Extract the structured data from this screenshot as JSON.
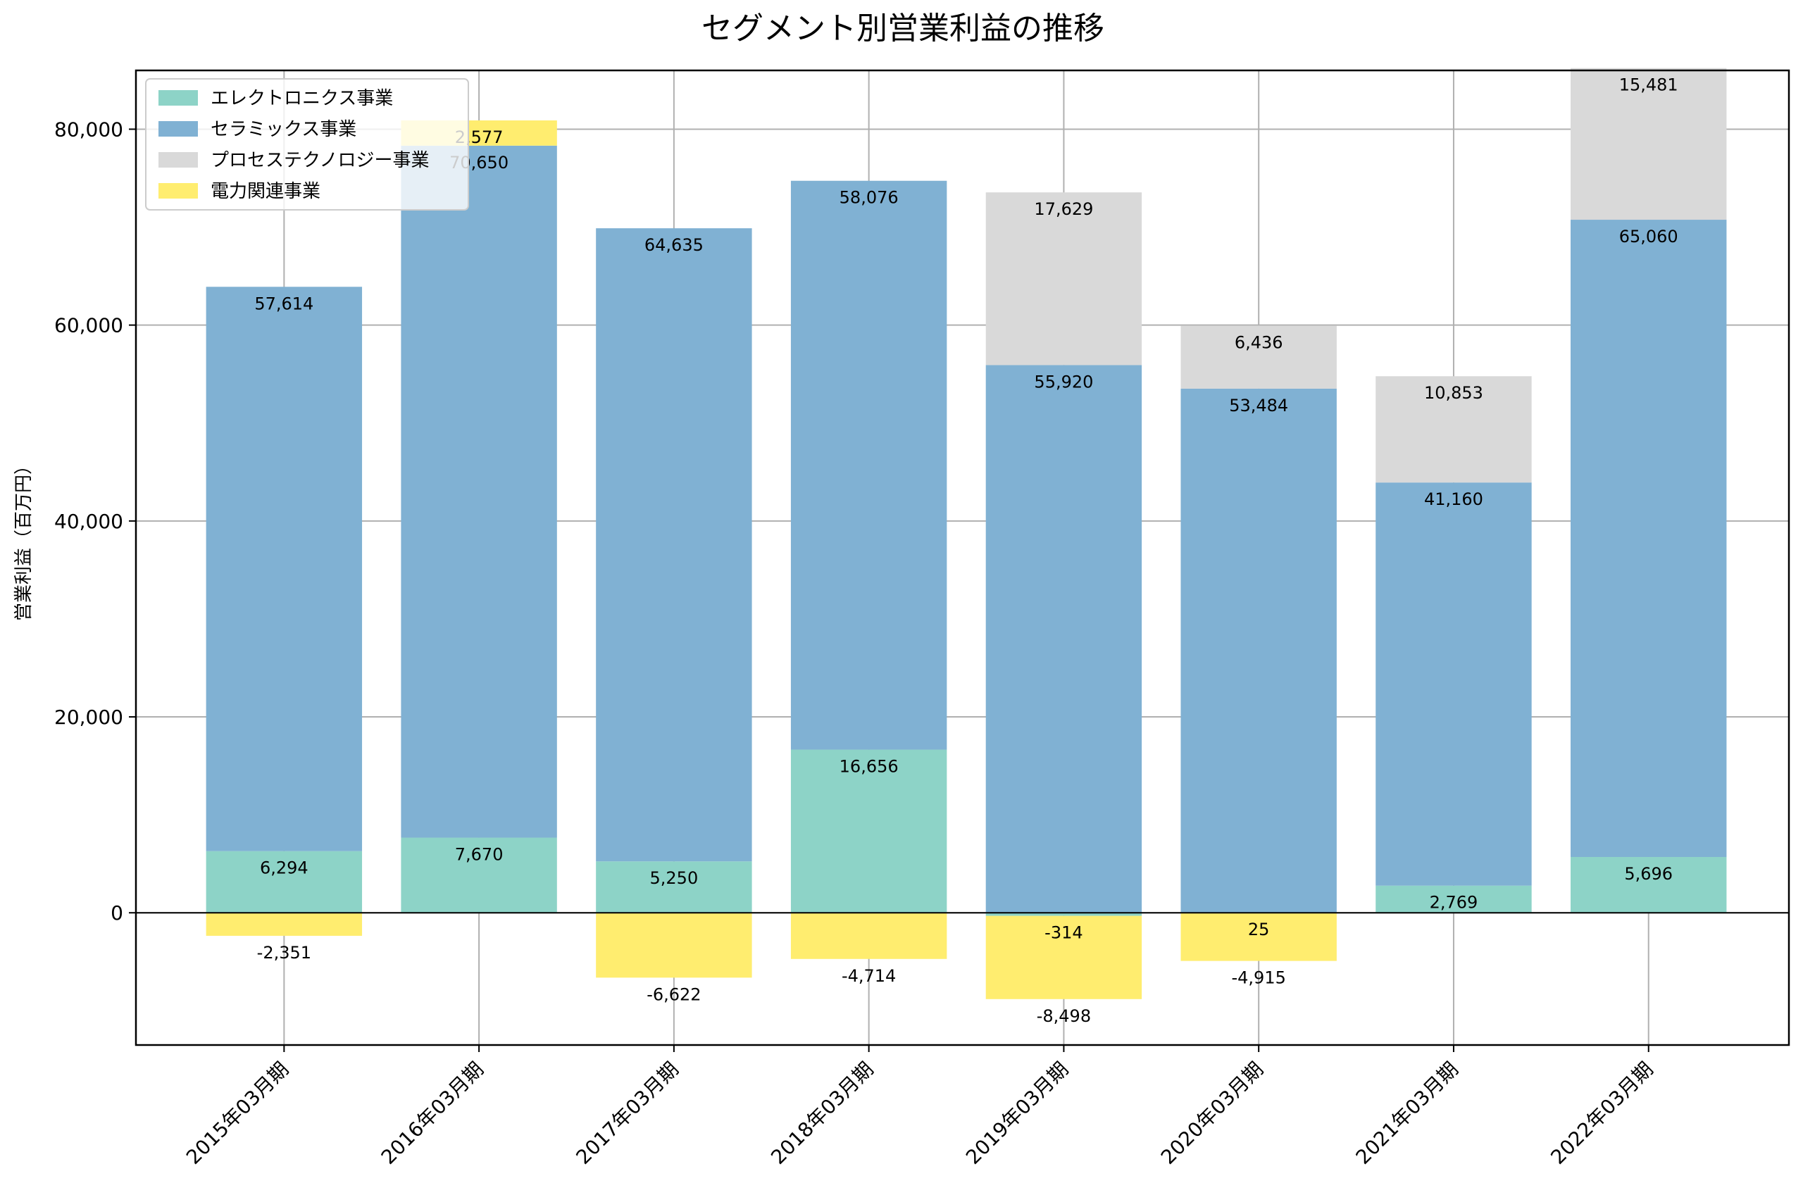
{
  "chart_data": {
    "type": "bar",
    "stacked": true,
    "title": "セグメント別営業利益の推移",
    "xlabel": "",
    "ylabel": "営業利益（百万円）",
    "ylim": [
      -13500,
      86000
    ],
    "yticks": [
      0,
      20000,
      40000,
      60000,
      80000
    ],
    "ytick_labels": [
      "0",
      "20,000",
      "40,000",
      "60,000",
      "80,000"
    ],
    "grid": true,
    "legend_position": "top-left",
    "categories": [
      "2015年03月期",
      "2016年03月期",
      "2017年03月期",
      "2018年03月期",
      "2019年03月期",
      "2020年03月期",
      "2021年03月期",
      "2022年03月期"
    ],
    "series": [
      {
        "name": "エレクトロニクス事業",
        "color": "#8dd3c7",
        "values": [
          6294,
          7670,
          5250,
          16656,
          -314,
          25,
          2769,
          5696
        ]
      },
      {
        "name": "セラミックス事業",
        "color": "#80b1d3",
        "values": [
          57614,
          70650,
          64635,
          58076,
          55920,
          53484,
          41160,
          65060
        ]
      },
      {
        "name": "プロセステクノロジー事業",
        "color": "#d9d9d9",
        "values": [
          0,
          0,
          0,
          0,
          17629,
          6436,
          10853,
          15481
        ]
      },
      {
        "name": "電力関連事業",
        "color": "#ffed6f",
        "values": [
          -2351,
          2577,
          -6622,
          -4714,
          -8498,
          -4915,
          0,
          0
        ]
      }
    ],
    "data_labels": [
      [
        "6,294",
        "7,670",
        "5,250",
        "16,656",
        "-314",
        "25",
        "2,769",
        "5,696"
      ],
      [
        "57,614",
        "70,650",
        "64,635",
        "58,076",
        "55,920",
        "53,484",
        "41,160",
        "65,060"
      ],
      [
        "",
        "",
        "",
        "",
        "17,629",
        "6,436",
        "10,853",
        "15,481"
      ],
      [
        "-2,351",
        "2,577",
        "-6,622",
        "-4,714",
        "-8,498",
        "-4,915",
        "",
        ""
      ]
    ]
  }
}
